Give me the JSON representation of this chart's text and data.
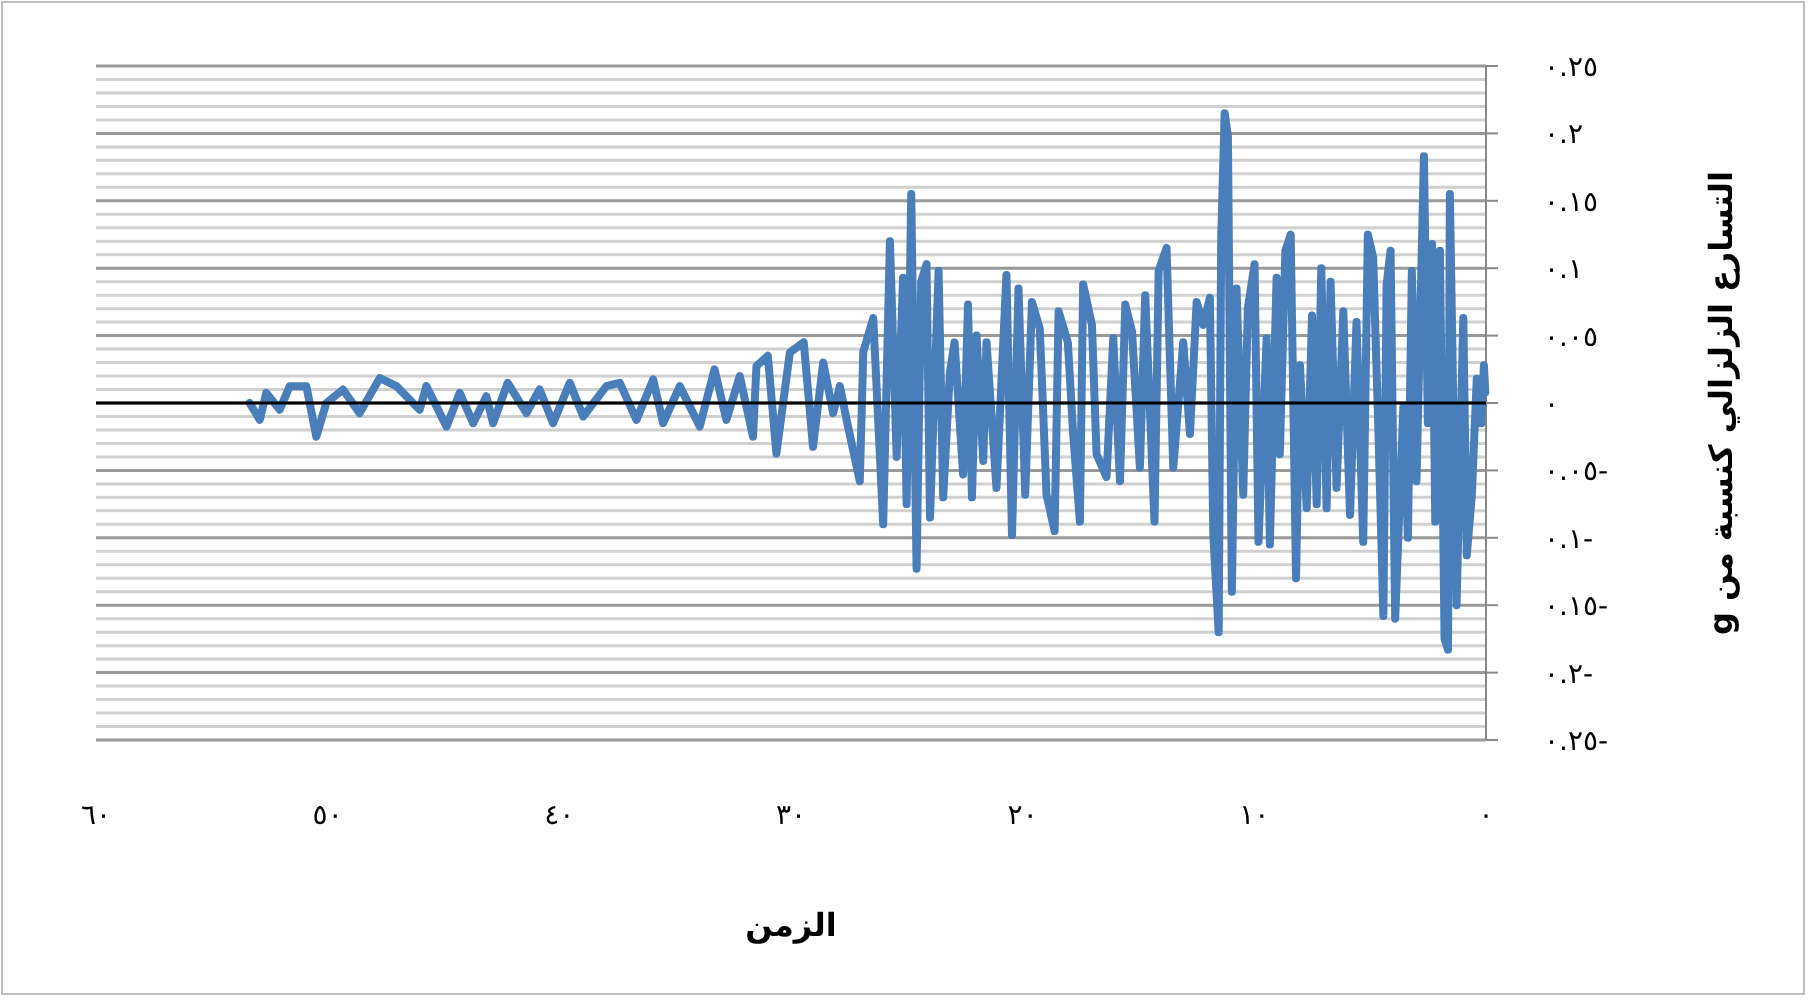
{
  "chart_data": {
    "type": "line",
    "xlabel": "الزمن",
    "ylabel": "التسارع الزلزالي كنسبة من g",
    "xlim": [
      60,
      0
    ],
    "ylim": [
      -0.25,
      0.25
    ],
    "xticks": [
      {
        "value": 60,
        "label": "٦٠"
      },
      {
        "value": 50,
        "label": "٥٠"
      },
      {
        "value": 40,
        "label": "٤٠"
      },
      {
        "value": 30,
        "label": "٣٠"
      },
      {
        "value": 20,
        "label": "٢٠"
      },
      {
        "value": 10,
        "label": "١٠"
      },
      {
        "value": 0,
        "label": "٠"
      }
    ],
    "yticks": [
      {
        "value": 0.25,
        "label": "٠.٢٥"
      },
      {
        "value": 0.24,
        "label": null
      },
      {
        "value": 0.23,
        "label": null
      },
      {
        "value": 0.22,
        "label": null
      },
      {
        "value": 0.21,
        "label": null
      },
      {
        "value": 0.2,
        "label": "٠.٢"
      },
      {
        "value": 0.19,
        "label": null
      },
      {
        "value": 0.18,
        "label": null
      },
      {
        "value": 0.17,
        "label": null
      },
      {
        "value": 0.16,
        "label": null
      },
      {
        "value": 0.15,
        "label": "٠.١٥"
      },
      {
        "value": 0.14,
        "label": null
      },
      {
        "value": 0.13,
        "label": null
      },
      {
        "value": 0.12,
        "label": null
      },
      {
        "value": 0.11,
        "label": null
      },
      {
        "value": 0.1,
        "label": "٠.١"
      },
      {
        "value": 0.09,
        "label": null
      },
      {
        "value": 0.08,
        "label": null
      },
      {
        "value": 0.07,
        "label": null
      },
      {
        "value": 0.06,
        "label": null
      },
      {
        "value": 0.05,
        "label": "٠.٠٥"
      },
      {
        "value": 0.04,
        "label": null
      },
      {
        "value": 0.03,
        "label": null
      },
      {
        "value": 0.02,
        "label": null
      },
      {
        "value": 0.01,
        "label": null
      },
      {
        "value": 0,
        "label": "٠"
      },
      {
        "value": -0.01,
        "label": null
      },
      {
        "value": -0.02,
        "label": null
      },
      {
        "value": -0.03,
        "label": null
      },
      {
        "value": -0.04,
        "label": null
      },
      {
        "value": -0.05,
        "label": "٠.٠٥-"
      },
      {
        "value": -0.06,
        "label": null
      },
      {
        "value": -0.07,
        "label": null
      },
      {
        "value": -0.08,
        "label": null
      },
      {
        "value": -0.09,
        "label": null
      },
      {
        "value": -0.1,
        "label": "٠.١-"
      },
      {
        "value": -0.11,
        "label": null
      },
      {
        "value": -0.12,
        "label": null
      },
      {
        "value": -0.13,
        "label": null
      },
      {
        "value": -0.14,
        "label": null
      },
      {
        "value": -0.15,
        "label": "٠.١٥-"
      },
      {
        "value": -0.16,
        "label": null
      },
      {
        "value": -0.17,
        "label": null
      },
      {
        "value": -0.18,
        "label": null
      },
      {
        "value": -0.19,
        "label": null
      },
      {
        "value": -0.2,
        "label": "٠.٢-"
      },
      {
        "value": -0.21,
        "label": null
      },
      {
        "value": -0.22,
        "label": null
      },
      {
        "value": -0.23,
        "label": null
      },
      {
        "value": -0.24,
        "label": null
      },
      {
        "value": -0.25,
        "label": "٠.٢٥-"
      }
    ],
    "grid": "y",
    "series": [
      {
        "color": "#4a7ebb",
        "x": [
          53.37,
          52.93,
          52.65,
          52.07,
          51.64,
          50.92,
          50.49,
          50.06,
          49.34,
          48.62,
          47.75,
          47.03,
          46.03,
          45.74,
          44.87,
          44.3,
          43.72,
          43.15,
          42.86,
          42.23,
          41.42,
          40.85,
          40.27,
          39.55,
          38.97,
          37.97,
          37.39,
          36.67,
          35.95,
          35.52,
          34.8,
          33.94,
          33.3,
          32.79,
          32.21,
          31.64,
          31.49,
          31.0,
          30.63,
          30.05,
          29.45,
          29.05,
          28.61,
          28.18,
          27.89,
          27.6,
          27.03,
          26.88,
          26.45,
          26.02,
          25.73,
          25.44,
          25.16,
          25.01,
          24.81,
          24.58,
          24.38,
          24.15,
          24.0,
          23.63,
          23.43,
          23.14,
          22.94,
          22.57,
          22.36,
          22.19,
          21.99,
          21.7,
          21.56,
          21.13,
          20.7,
          20.46,
          20.18,
          19.89,
          19.6,
          19.26,
          18.97,
          18.62,
          18.45,
          18.05,
          17.82,
          17.53,
          17.39,
          17.01,
          16.81,
          16.38,
          16.09,
          15.8,
          15.57,
          15.28,
          14.94,
          14.71,
          14.31,
          14.13,
          13.79,
          13.5,
          13.07,
          12.78,
          12.49,
          12.2,
          11.92,
          11.77,
          11.54,
          11.43,
          11.28,
          11.14,
          10.97,
          10.77,
          10.48,
          10.28,
          9.99,
          9.82,
          9.47,
          9.33,
          9.04,
          8.9,
          8.66,
          8.43,
          8.2,
          8.03,
          7.74,
          7.51,
          7.31,
          7.11,
          6.88,
          6.71,
          6.45,
          6.16,
          5.87,
          5.59,
          5.3,
          5.1,
          4.87,
          4.64,
          4.43,
          4.29,
          4.12,
          3.92,
          3.57,
          3.37,
          3.2,
          3.0,
          2.68,
          2.51,
          2.33,
          2.19,
          1.99,
          1.79,
          1.64,
          1.56,
          1.41,
          1.27,
          0.98,
          0.83,
          0.61,
          0.4,
          0.2,
          0.09,
          0.03
        ],
        "values": [
          0,
          -0.0125,
          0.0075,
          -0.005,
          0.0125,
          0.0125,
          -0.025,
          0,
          0.01,
          -0.0075,
          0.0185,
          0.0125,
          -0.005,
          0.0125,
          -0.0175,
          0.0075,
          -0.015,
          0.005,
          -0.015,
          0.015,
          -0.0075,
          0.01,
          -0.015,
          0.015,
          -0.01,
          0.0125,
          0.015,
          -0.0125,
          0.0175,
          -0.015,
          0.0125,
          -0.0175,
          0.025,
          -0.0125,
          0.02,
          -0.025,
          0.0275,
          0.035,
          -0.0375,
          0.0375,
          0.045,
          -0.0325,
          0.03,
          -0.0075,
          0.0125,
          -0.0125,
          -0.058,
          0.038,
          0.063,
          -0.09,
          0.12,
          -0.04,
          0.093,
          -0.075,
          0.155,
          -0.123,
          0.09,
          0.103,
          -0.085,
          0.098,
          -0.07,
          0.023,
          0.045,
          -0.053,
          0.073,
          -0.07,
          0.05,
          -0.043,
          0.045,
          -0.063,
          0.095,
          -0.098,
          0.085,
          -0.068,
          0.075,
          0.055,
          -0.068,
          -0.095,
          0.068,
          0.045,
          -0.023,
          -0.088,
          0.088,
          0.058,
          -0.038,
          -0.055,
          0.048,
          -0.058,
          0.073,
          0.053,
          -0.048,
          0.08,
          -0.088,
          0.098,
          0.115,
          -0.048,
          0.045,
          -0.023,
          0.075,
          0.058,
          0.078,
          -0.098,
          -0.17,
          0.123,
          0.215,
          0.198,
          -0.14,
          0.085,
          -0.068,
          0.07,
          0.103,
          -0.103,
          0.048,
          -0.105,
          0.093,
          -0.038,
          0.113,
          0.125,
          -0.13,
          0.028,
          -0.078,
          0.065,
          -0.075,
          0.1,
          -0.078,
          0.09,
          -0.063,
          0.068,
          -0.083,
          0.06,
          -0.103,
          0.125,
          0.108,
          -0.023,
          -0.158,
          0.088,
          0.113,
          -0.16,
          -0.003,
          -0.1,
          0.098,
          -0.058,
          0.183,
          -0.015,
          0.118,
          -0.088,
          0.113,
          -0.175,
          -0.183,
          0.155,
          -0.003,
          -0.15,
          0.063,
          -0.113,
          -0.068,
          0.018,
          -0.015,
          0.028,
          0.008
        ]
      }
    ]
  }
}
